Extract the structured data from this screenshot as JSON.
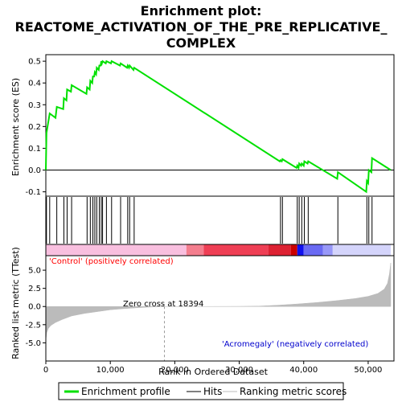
{
  "chart_data": {
    "type": "line",
    "title_lines": [
      "Enrichment plot:",
      "REACTOME_ACTIVATION_OF_THE_PRE_REPLICATIVE_",
      "COMPLEX"
    ],
    "xlabel": "Rank in Ordered Dataset",
    "ylabel_top": "Enrichment score (ES)",
    "ylabel_bottom": "Ranked list metric (TTest)",
    "xlim": [
      0,
      54000
    ],
    "x_ticks": [
      0,
      10000,
      20000,
      30000,
      40000,
      50000
    ],
    "x_tick_labels": [
      "0",
      "10,000",
      "20,000",
      "30,000",
      "40,000",
      "50,000"
    ],
    "es_ylim": [
      -0.12,
      0.53
    ],
    "es_ticks": [
      -0.1,
      0.0,
      0.1,
      0.2,
      0.3,
      0.4,
      0.5
    ],
    "es_tick_labels": [
      "-0.1",
      "0.0",
      "0.1",
      "0.2",
      "0.3",
      "0.4",
      "0.5"
    ],
    "metric_ylim": [
      -7.5,
      7
    ],
    "metric_ticks": [
      -5.0,
      -2.5,
      0.0,
      2.5,
      5.0
    ],
    "metric_tick_labels": [
      "-5.0",
      "-2.5",
      "0.0",
      "2.5",
      "5.0"
    ],
    "hits": [
      100,
      600,
      1700,
      2800,
      3300,
      4000,
      6400,
      6900,
      7300,
      7600,
      7900,
      8300,
      8600,
      8800,
      9400,
      10200,
      11600,
      12700,
      13000,
      13700,
      36400,
      36700,
      39000,
      39300,
      39700,
      40100,
      40700,
      45300,
      49800,
      50100,
      50600
    ],
    "es_points": [
      [
        0,
        0.0
      ],
      [
        100,
        0.17
      ],
      [
        600,
        0.26
      ],
      [
        1500,
        0.24
      ],
      [
        1700,
        0.29
      ],
      [
        2700,
        0.28
      ],
      [
        2800,
        0.33
      ],
      [
        3200,
        0.32
      ],
      [
        3300,
        0.37
      ],
      [
        3900,
        0.36
      ],
      [
        4000,
        0.39
      ],
      [
        6300,
        0.35
      ],
      [
        6400,
        0.38
      ],
      [
        6800,
        0.37
      ],
      [
        6900,
        0.41
      ],
      [
        7200,
        0.4
      ],
      [
        7300,
        0.43
      ],
      [
        7500,
        0.43
      ],
      [
        7600,
        0.45
      ],
      [
        7800,
        0.44
      ],
      [
        7900,
        0.47
      ],
      [
        8200,
        0.46
      ],
      [
        8300,
        0.48
      ],
      [
        8500,
        0.48
      ],
      [
        8600,
        0.5
      ],
      [
        8700,
        0.49
      ],
      [
        8800,
        0.5
      ],
      [
        9300,
        0.49
      ],
      [
        9400,
        0.5
      ],
      [
        10100,
        0.49
      ],
      [
        10200,
        0.5
      ],
      [
        11500,
        0.48
      ],
      [
        11600,
        0.49
      ],
      [
        12600,
        0.47
      ],
      [
        12700,
        0.48
      ],
      [
        12900,
        0.47
      ],
      [
        13000,
        0.48
      ],
      [
        13600,
        0.46
      ],
      [
        13700,
        0.47
      ],
      [
        36300,
        0.04
      ],
      [
        36400,
        0.045
      ],
      [
        36600,
        0.04
      ],
      [
        36700,
        0.05
      ],
      [
        38900,
        0.01
      ],
      [
        39000,
        0.02
      ],
      [
        39200,
        0.01
      ],
      [
        39300,
        0.03
      ],
      [
        39600,
        0.02
      ],
      [
        39700,
        0.03
      ],
      [
        40000,
        0.02
      ],
      [
        40100,
        0.04
      ],
      [
        40600,
        0.03
      ],
      [
        40700,
        0.04
      ],
      [
        45200,
        -0.04
      ],
      [
        45300,
        -0.01
      ],
      [
        49700,
        -0.1
      ],
      [
        49800,
        -0.05
      ],
      [
        50000,
        -0.06
      ],
      [
        50100,
        0.0
      ],
      [
        50500,
        -0.01
      ],
      [
        50600,
        0.055
      ],
      [
        53500,
        0.0
      ]
    ],
    "zero_cross_rank": 18394,
    "positive_label": "'Control' (positively correlated)",
    "negative_label": "'Acromegaly' (negatively correlated)",
    "zero_cross_label": "Zero cross at 18394",
    "metric_curve": [
      [
        0,
        -4.6
      ],
      [
        150,
        -3.6
      ],
      [
        400,
        -3.0
      ],
      [
        800,
        -2.6
      ],
      [
        1500,
        -2.2
      ],
      [
        2500,
        -1.8
      ],
      [
        4000,
        -1.3
      ],
      [
        6000,
        -0.95
      ],
      [
        8000,
        -0.7
      ],
      [
        10000,
        -0.45
      ],
      [
        12000,
        -0.3
      ],
      [
        14000,
        -0.18
      ],
      [
        16000,
        -0.08
      ],
      [
        18394,
        0.0
      ],
      [
        24000,
        0.0
      ],
      [
        30000,
        0.02
      ],
      [
        33000,
        0.05
      ],
      [
        36000,
        0.18
      ],
      [
        39000,
        0.35
      ],
      [
        42000,
        0.55
      ],
      [
        45000,
        0.8
      ],
      [
        48000,
        1.1
      ],
      [
        50000,
        1.4
      ],
      [
        51500,
        1.8
      ],
      [
        52500,
        2.4
      ],
      [
        53000,
        3.2
      ],
      [
        53300,
        4.5
      ],
      [
        53500,
        6.0
      ]
    ],
    "colors": {
      "es_line": "#00e000",
      "hit_line": "#000000",
      "positive_text": "#ff0000",
      "negative_text": "#0000cc",
      "metric_fill": "#bbbbbb",
      "zero_cross_line": "#999999"
    },
    "colorbar": [
      {
        "from": 0,
        "to": 21800,
        "color": "#f9bfdf"
      },
      {
        "from": 21800,
        "to": 24500,
        "color": "#f47e8e"
      },
      {
        "from": 24500,
        "to": 34500,
        "color": "#ef3f55"
      },
      {
        "from": 34500,
        "to": 38000,
        "color": "#dd2233"
      },
      {
        "from": 38000,
        "to": 39000,
        "color": "#cc0000"
      },
      {
        "from": 39000,
        "to": 40000,
        "color": "#1010ee"
      },
      {
        "from": 40000,
        "to": 43000,
        "color": "#6a6af3"
      },
      {
        "from": 43000,
        "to": 44500,
        "color": "#9898f8"
      },
      {
        "from": 44500,
        "to": 53500,
        "color": "#d4d4fb"
      }
    ]
  },
  "legend": {
    "items": [
      {
        "label": "Enrichment profile",
        "kind": "line",
        "color": "#00e000"
      },
      {
        "label": "Hits",
        "kind": "line",
        "color": "#000000"
      },
      {
        "label": "Ranking metric scores",
        "kind": "line",
        "color": "#bbbbbb"
      }
    ]
  }
}
